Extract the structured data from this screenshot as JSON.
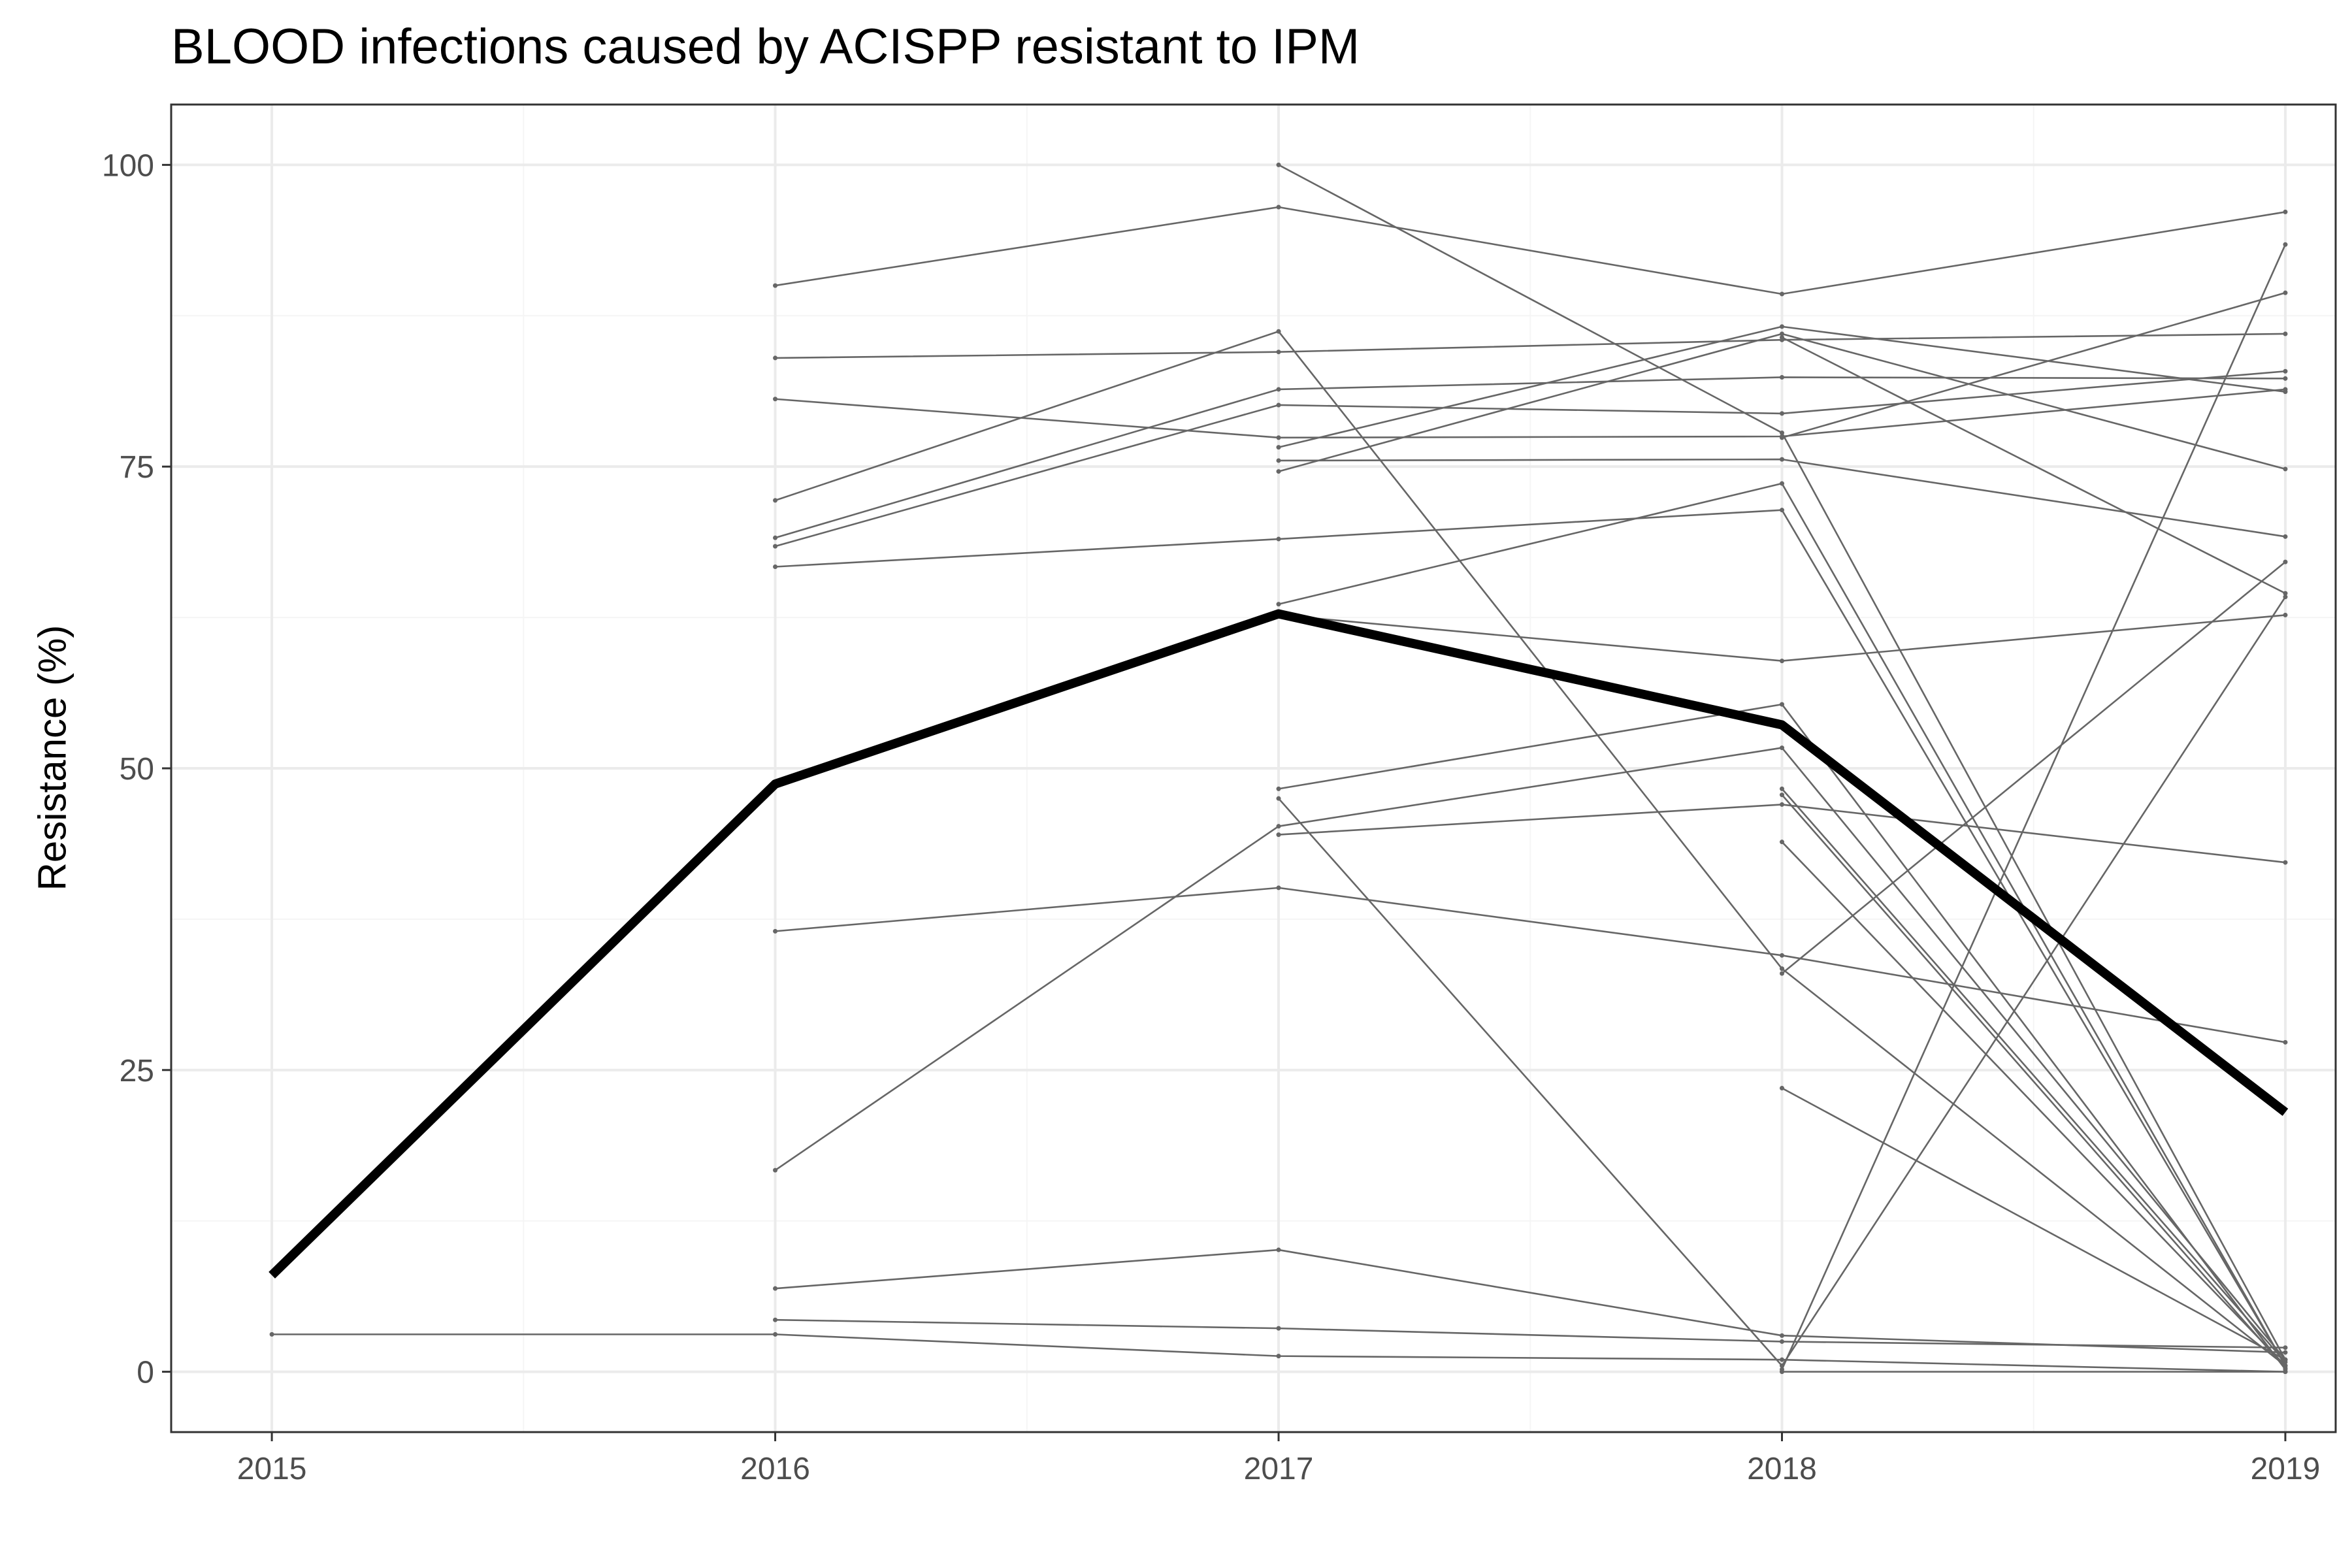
{
  "chart_data": {
    "type": "line",
    "title": "BLOOD infections caused by ACISPP resistant to IPM",
    "xlabel": "",
    "ylabel": "Resistance (%)",
    "x": [
      "2015",
      "2016",
      "2017",
      "2018",
      "2019"
    ],
    "xlim": [
      2014.8,
      2019.1
    ],
    "ylim": [
      -5,
      105
    ],
    "yticks": [
      0,
      25,
      50,
      75,
      100
    ],
    "xticks": [
      2015,
      2016,
      2017,
      2018,
      2019
    ],
    "grid": true,
    "legend": "none",
    "colors": {
      "series": "#666666",
      "summary": "#000000",
      "grid_major": "#ebebeb",
      "grid_minor": "#f5f5f5",
      "panel_border": "#333333"
    },
    "series": [
      {
        "values": [
          3.1,
          3.1,
          1.3,
          1.0,
          0.0
        ]
      },
      {
        "values": [
          null,
          90.0,
          96.5,
          89.3,
          96.1
        ]
      },
      {
        "values": [
          null,
          84.0,
          84.5,
          85.5,
          86.0
        ]
      },
      {
        "values": [
          null,
          80.6,
          77.4,
          77.5,
          81.4
        ]
      },
      {
        "values": [
          null,
          72.2,
          86.2,
          33.4,
          0.5
        ]
      },
      {
        "values": [
          null,
          69.1,
          81.4,
          82.4,
          82.3
        ]
      },
      {
        "values": [
          null,
          68.4,
          80.1,
          79.4,
          82.9
        ]
      },
      {
        "values": [
          null,
          66.7,
          69.0,
          71.4,
          0.5
        ]
      },
      {
        "values": [
          null,
          36.5,
          40.1,
          34.5,
          27.3
        ]
      },
      {
        "values": [
          null,
          16.7,
          45.2,
          51.7,
          1.0
        ]
      },
      {
        "values": [
          null,
          6.9,
          10.1,
          3.0,
          1.6
        ]
      },
      {
        "values": [
          null,
          4.3,
          3.6,
          2.5,
          2.0
        ]
      },
      {
        "values": [
          null,
          null,
          100.0,
          77.8,
          1.0
        ]
      },
      {
        "values": [
          null,
          null,
          76.6,
          86.6,
          81.2
        ]
      },
      {
        "values": [
          null,
          null,
          75.5,
          75.6,
          69.2
        ]
      },
      {
        "values": [
          null,
          null,
          74.6,
          86.0,
          74.8
        ]
      },
      {
        "values": [
          null,
          null,
          63.6,
          73.6,
          0.5
        ]
      },
      {
        "values": [
          null,
          null,
          62.7,
          58.9,
          62.7
        ]
      },
      {
        "values": [
          null,
          null,
          48.3,
          55.3,
          0.2
        ]
      },
      {
        "values": [
          null,
          null,
          44.5,
          47.0,
          42.2
        ]
      },
      {
        "values": [
          null,
          null,
          47.5,
          0.5,
          64.2
        ]
      },
      {
        "values": [
          null,
          null,
          null,
          77.4,
          89.4
        ]
      },
      {
        "values": [
          null,
          null,
          null,
          85.7,
          64.5
        ]
      },
      {
        "values": [
          null,
          null,
          null,
          48.3,
          0.8
        ]
      },
      {
        "values": [
          null,
          null,
          null,
          47.8,
          0.3
        ]
      },
      {
        "values": [
          null,
          null,
          null,
          43.9,
          0.5
        ]
      },
      {
        "values": [
          null,
          null,
          null,
          33.0,
          67.1
        ]
      },
      {
        "values": [
          null,
          null,
          null,
          23.5,
          1.0
        ]
      },
      {
        "values": [
          null,
          null,
          null,
          0.2,
          93.4
        ]
      },
      {
        "values": [
          null,
          null,
          null,
          0.0,
          0.0
        ]
      }
    ],
    "summary": {
      "values": [
        8.0,
        48.7,
        62.8,
        53.6,
        21.5
      ]
    }
  }
}
